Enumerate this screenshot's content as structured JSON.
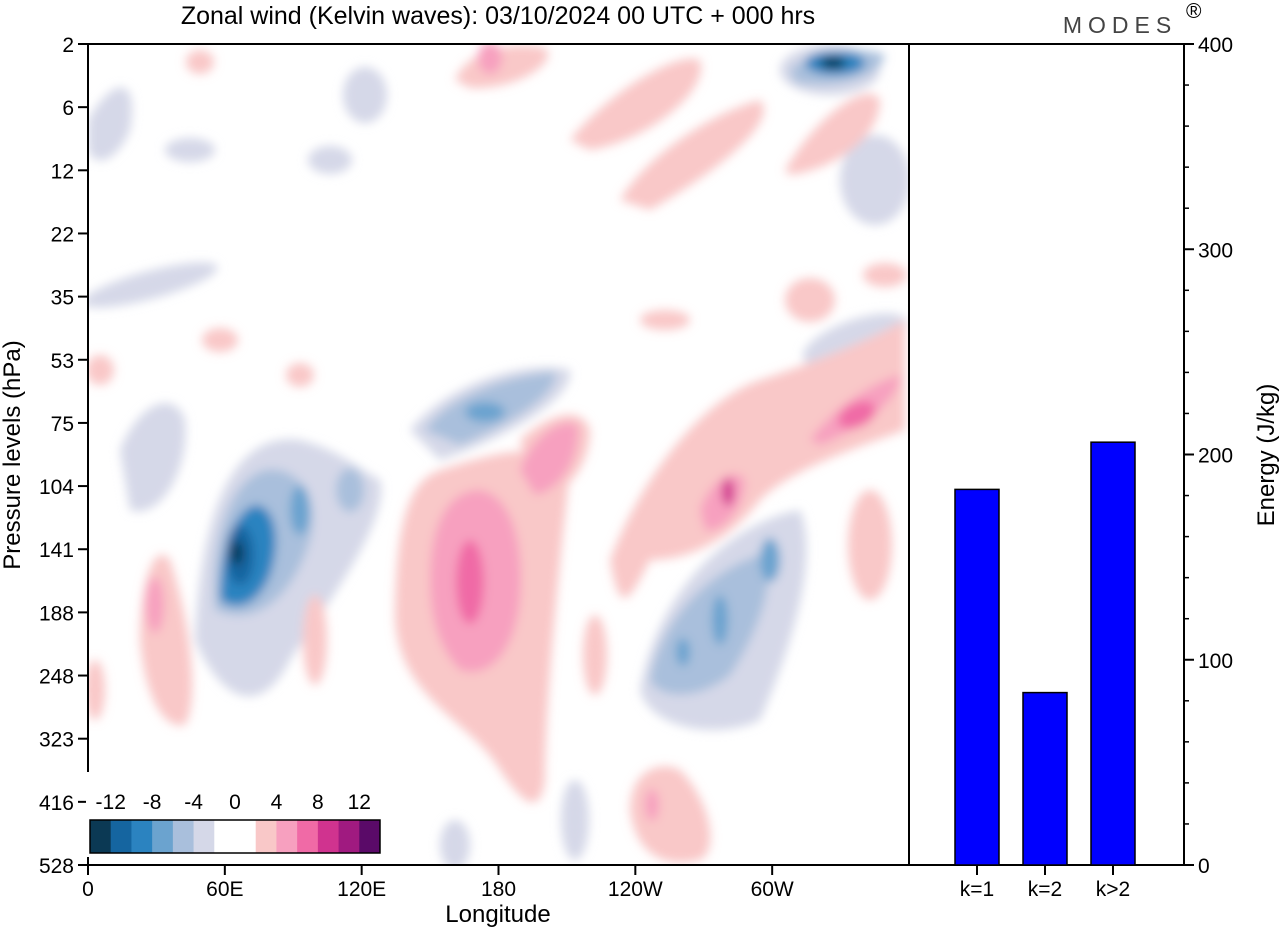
{
  "logo": "MODES",
  "chart_data": [
    {
      "type": "heatmap",
      "title": "Zonal wind (Kelvin waves):  03/10/2024  00 UTC  + 000 hrs",
      "xlabel": "Longitude",
      "ylabel": "Pressure levels (hPa)",
      "x_ticks": [
        "0",
        "60E",
        "120E",
        "180",
        "120W",
        "60W"
      ],
      "y_ticks": [
        "2",
        "6",
        "12",
        "22",
        "35",
        "53",
        "75",
        "104",
        "141",
        "188",
        "248",
        "323",
        "416",
        "528"
      ],
      "colorbar": {
        "labels": [
          "-12",
          "-8",
          "-4",
          "0",
          "4",
          "8",
          "12"
        ],
        "colors": [
          "#0b3954",
          "#1565a0",
          "#2b83c0",
          "#6ba3cf",
          "#a9bfdc",
          "#d5d8e8",
          "#ffffff",
          "#ffffff",
          "#f9c8c8",
          "#f7a0bf",
          "#f06aa6",
          "#d0338f",
          "#a01a80",
          "#5a0a68"
        ]
      },
      "features": [
        {
          "lon": 65,
          "p": 141,
          "value": -13
        },
        {
          "lon": 62,
          "p": 160,
          "value": -10
        },
        {
          "lon": 92,
          "p": 110,
          "value": -7
        },
        {
          "lon": 116,
          "p": 115,
          "value": -5
        },
        {
          "lon": 40,
          "p": 120,
          "value": -5
        },
        {
          "lon": 175,
          "p": 70,
          "value": -7
        },
        {
          "lon": 200,
          "p": 58,
          "value": -6
        },
        {
          "lon": 300,
          "p": 170,
          "value": -7
        },
        {
          "lon": 280,
          "p": 225,
          "value": -6
        },
        {
          "lon": 330,
          "p": 3,
          "value": -11
        },
        {
          "lon": 30,
          "p": 200,
          "value": 5
        },
        {
          "lon": 168,
          "p": 160,
          "value": 8
        },
        {
          "lon": 195,
          "p": 90,
          "value": 5
        },
        {
          "lon": 282,
          "p": 104,
          "value": 9
        },
        {
          "lon": 345,
          "p": 70,
          "value": 6
        },
        {
          "lon": 280,
          "p": 470,
          "value": 4
        },
        {
          "lon": 175,
          "p": 3,
          "value": 4
        }
      ]
    },
    {
      "type": "bar",
      "categories": [
        "k=1",
        "k=2",
        "k>2"
      ],
      "values": [
        183,
        84,
        206
      ],
      "ylabel": "Energy (J/kg)",
      "ylim": [
        0,
        400
      ],
      "y_ticks": [
        "0",
        "100",
        "200",
        "300",
        "400"
      ],
      "bar_color": "#0000ff"
    }
  ]
}
